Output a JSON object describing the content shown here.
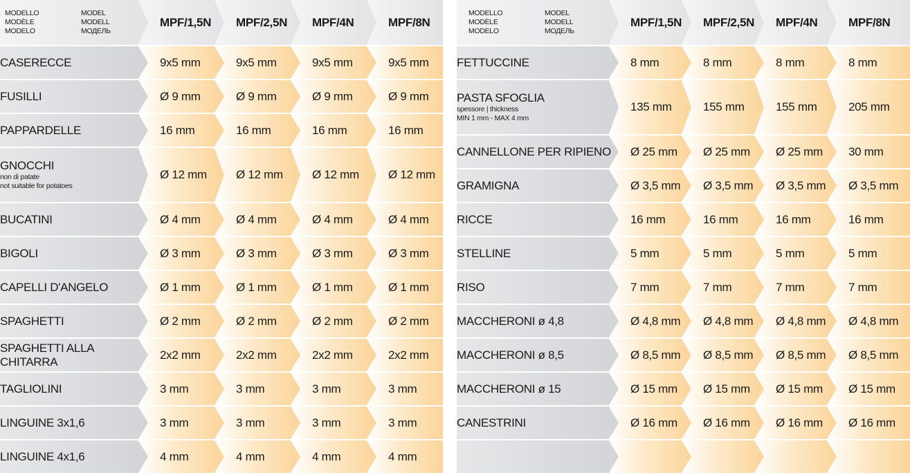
{
  "header": {
    "model_labels": [
      "MODELLO",
      "MODEL",
      "MODÈLE",
      "MODELL",
      "MODELO",
      "МОДЕЛЬ"
    ],
    "models": [
      "MPF/1,5N",
      "MPF/2,5N",
      "MPF/4N",
      "MPF/8N"
    ]
  },
  "left_rows": [
    {
      "name": "CASERECCE",
      "values": [
        "9x5 mm",
        "9x5 mm",
        "9x5 mm",
        "9x5 mm"
      ]
    },
    {
      "name": "FUSILLI",
      "values": [
        "Ø 9 mm",
        "Ø 9 mm",
        "Ø 9 mm",
        "Ø 9 mm"
      ]
    },
    {
      "name": "PAPPARDELLE",
      "values": [
        "16 mm",
        "16 mm",
        "16 mm",
        "16 mm"
      ]
    },
    {
      "name": "GNOCCHI",
      "notes": [
        "non di patate",
        "not suitable for potatoes"
      ],
      "values": [
        "Ø 12 mm",
        "Ø 12 mm",
        "Ø 12 mm",
        "Ø 12 mm"
      ]
    },
    {
      "name": "BUCATINI",
      "values": [
        "Ø 4 mm",
        "Ø 4 mm",
        "Ø 4 mm",
        "Ø 4 mm"
      ]
    },
    {
      "name": "BIGOLI",
      "values": [
        "Ø 3 mm",
        "Ø 3 mm",
        "Ø 3 mm",
        "Ø 3 mm"
      ]
    },
    {
      "name": "CAPELLI D'ANGELO",
      "values": [
        "Ø 1 mm",
        "Ø 1 mm",
        "Ø 1 mm",
        "Ø 1 mm"
      ]
    },
    {
      "name": "SPAGHETTI",
      "values": [
        "Ø 2 mm",
        "Ø 2 mm",
        "Ø 2 mm",
        "Ø 2 mm"
      ]
    },
    {
      "name": "SPAGHETTI ALLA CHITARRA",
      "values": [
        "2x2 mm",
        "2x2 mm",
        "2x2 mm",
        "2x2 mm"
      ]
    },
    {
      "name": "TAGLIOLINI",
      "values": [
        "3 mm",
        "3 mm",
        "3 mm",
        "3 mm"
      ]
    },
    {
      "name": "LINGUINE 3x1,6",
      "values": [
        "3 mm",
        "3 mm",
        "3 mm",
        "3 mm"
      ]
    },
    {
      "name": "LINGUINE 4x1,6",
      "values": [
        "4 mm",
        "4 mm",
        "4 mm",
        "4 mm"
      ]
    }
  ],
  "right_rows": [
    {
      "name": "FETTUCCINE",
      "values": [
        "8 mm",
        "8 mm",
        "8 mm",
        "8 mm"
      ]
    },
    {
      "name": "PASTA SFOGLIA",
      "notes": [
        "spessore | thickness",
        "MIN 1 mm - MAX 4 mm"
      ],
      "values": [
        "135 mm",
        "155 mm",
        "155 mm",
        "205 mm"
      ]
    },
    {
      "name": "CANNELLONE PER RIPIENO",
      "values": [
        "Ø 25 mm",
        "Ø 25 mm",
        "Ø 25 mm",
        "30 mm"
      ]
    },
    {
      "name": "GRAMIGNA",
      "values": [
        "Ø 3,5 mm",
        "Ø 3,5 mm",
        "Ø 3,5 mm",
        "Ø 3,5 mm"
      ]
    },
    {
      "name": "RICCE",
      "values": [
        "16 mm",
        "16 mm",
        "16 mm",
        "16 mm"
      ]
    },
    {
      "name": "STELLINE",
      "values": [
        "5 mm",
        "5 mm",
        "5 mm",
        "5 mm"
      ]
    },
    {
      "name": "RISO",
      "values": [
        "7 mm",
        "7 mm",
        "7 mm",
        "7 mm"
      ]
    },
    {
      "name": "MACCHERONI ø 4,8",
      "values": [
        "Ø 4,8 mm",
        "Ø 4,8 mm",
        "Ø 4,8 mm",
        "Ø 4,8 mm"
      ]
    },
    {
      "name": "MACCHERONI ø 8,5",
      "values": [
        "Ø 8,5 mm",
        "Ø 8,5 mm",
        "Ø 8,5 mm",
        "Ø 8,5 mm"
      ]
    },
    {
      "name": "MACCHERONI ø 15",
      "values": [
        "Ø 15 mm",
        "Ø 15 mm",
        "Ø 15 mm",
        "Ø 15 mm"
      ]
    },
    {
      "name": "CANESTRINI",
      "values": [
        "Ø 16 mm",
        "Ø 16 mm",
        "Ø 16 mm",
        "Ø 16 mm"
      ]
    },
    {
      "name": "",
      "values": [
        "",
        "",
        "",
        ""
      ]
    }
  ]
}
